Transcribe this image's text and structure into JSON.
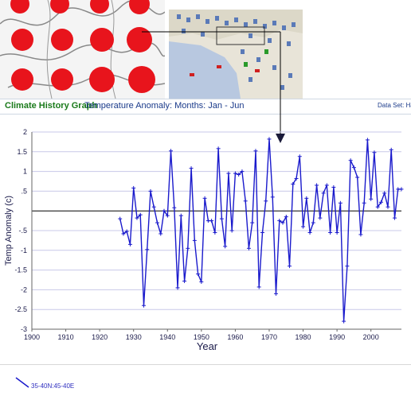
{
  "header": {
    "title": "Climate History Graph",
    "subtitle": "Temperature Anomaly: Months: Jan - Jun",
    "dataset": "Data Set: Ha"
  },
  "legend": {
    "series_label": "35-40N:45-40E"
  },
  "colors": {
    "series": "#1a1acc",
    "title_green": "#1a7a1a",
    "grid": "#c8c8e8",
    "dots": "#e8141c"
  },
  "chart_data": {
    "type": "line",
    "xlabel": "Year",
    "ylabel": "Temp Anomaly (c)",
    "xlim": [
      1900,
      2009
    ],
    "ylim": [
      -3,
      2
    ],
    "x_ticks": [
      1900,
      1910,
      1920,
      1930,
      1940,
      1950,
      1960,
      1970,
      1980,
      1990,
      2000
    ],
    "y_ticks": [
      "2",
      "1.5",
      "1",
      ".5",
      "",
      "-.5",
      "-1",
      "-1.5",
      "-2",
      "-2.5",
      "-3"
    ],
    "grid": true,
    "series": [
      {
        "x": [
          1926,
          1927,
          1928,
          1929,
          1930,
          1931,
          1932,
          1933,
          1934,
          1935,
          1936,
          1937,
          1938,
          1939,
          1940,
          1941,
          1942,
          1943,
          1944,
          1945,
          1946,
          1947,
          1948,
          1949,
          1950,
          1951,
          1952,
          1953,
          1954,
          1955,
          1956,
          1957,
          1958,
          1959,
          1960,
          1961,
          1962,
          1963,
          1964,
          1965,
          1966,
          1967,
          1968,
          1969,
          1970,
          1971,
          1972,
          1973,
          1974,
          1975,
          1976,
          1977,
          1978,
          1979,
          1980,
          1981,
          1982,
          1983,
          1984,
          1985,
          1986,
          1987,
          1988,
          1989,
          1990,
          1991,
          1992,
          1993,
          1994,
          1995,
          1996,
          1997,
          1998,
          1999,
          2000,
          2001,
          2002,
          2003,
          2004,
          2005,
          2006,
          2007,
          2008,
          2009
        ],
        "values": [
          -0.2,
          -0.58,
          -0.52,
          -0.85,
          0.58,
          -0.18,
          -0.1,
          -2.4,
          -0.98,
          0.5,
          0.1,
          -0.3,
          -0.58,
          0,
          -0.12,
          1.52,
          0.08,
          -1.95,
          -0.12,
          -1.78,
          -0.95,
          1.08,
          -0.75,
          -1.6,
          -1.8,
          0.32,
          -0.25,
          -0.25,
          -0.55,
          1.58,
          -0.2,
          -0.9,
          0.95,
          -0.5,
          0.95,
          0.92,
          1.0,
          0.25,
          -0.95,
          -0.3,
          1.52,
          -1.93,
          -0.55,
          0.25,
          1.82,
          0.35,
          -2.1,
          -0.25,
          -0.3,
          -0.15,
          -1.4,
          0.68,
          0.82,
          1.38,
          -0.4,
          0.32,
          -0.55,
          -0.3,
          0.65,
          -0.18,
          0.45,
          0.65,
          -0.55,
          0.6,
          -0.55,
          0.2,
          -2.8,
          -1.4,
          1.28,
          1.1,
          0.85,
          -0.6,
          0.2,
          1.8,
          0.3,
          1.48,
          0.1,
          0.22,
          0.45,
          0.1,
          1.55,
          -0.18,
          0.55,
          0.55
        ]
      }
    ]
  }
}
